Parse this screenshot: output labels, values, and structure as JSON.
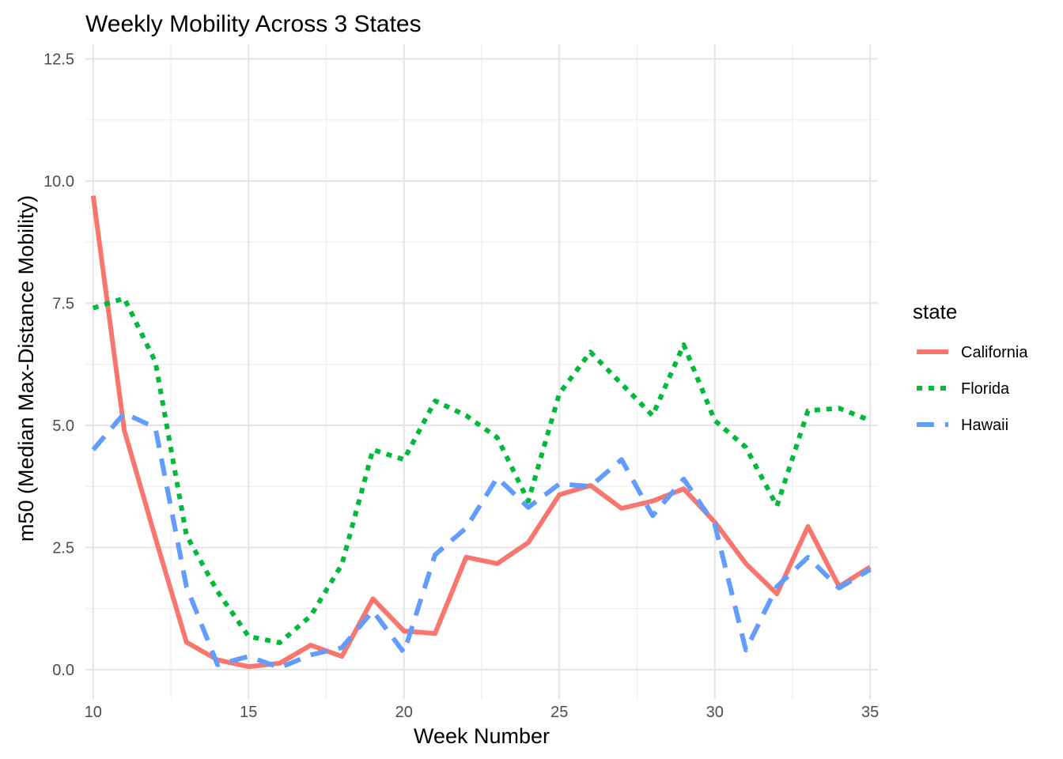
{
  "chart_data": {
    "type": "line",
    "title": "Weekly Mobility Across 3 States",
    "xlabel": "Week Number",
    "ylabel": "m50 (Median Max-Distance Mobility)",
    "xlim": [
      9.75,
      35.25
    ],
    "ylim": [
      -0.6,
      12.8
    ],
    "xticks": [
      10,
      15,
      20,
      25,
      30,
      35
    ],
    "yticks": [
      0.0,
      2.5,
      5.0,
      7.5,
      10.0,
      12.5
    ],
    "xtick_labels": [
      "10",
      "15",
      "20",
      "25",
      "30",
      "35"
    ],
    "ytick_labels": [
      "0.0",
      "2.5",
      "5.0",
      "7.5",
      "10.0",
      "12.5"
    ],
    "legend": {
      "title": "state",
      "position": "right"
    },
    "grid": true,
    "x": [
      10,
      11,
      12,
      13,
      14,
      15,
      16,
      17,
      18,
      19,
      20,
      21,
      22,
      23,
      24,
      25,
      26,
      27,
      28,
      29,
      30,
      31,
      32,
      33,
      34,
      35
    ],
    "series": [
      {
        "name": "California",
        "color": "#f8766d",
        "dash": "solid",
        "values": [
          9.7,
          4.9,
          2.7,
          0.56,
          0.2,
          0.06,
          0.13,
          0.5,
          0.27,
          1.45,
          0.79,
          0.74,
          2.3,
          2.17,
          2.6,
          3.58,
          3.77,
          3.3,
          3.45,
          3.7,
          3.02,
          2.17,
          1.55,
          2.93,
          1.7,
          2.1
        ]
      },
      {
        "name": "Florida",
        "color": "#00ba38",
        "dash": "dotted",
        "values": [
          7.4,
          7.6,
          6.3,
          2.75,
          1.6,
          0.68,
          0.55,
          1.1,
          2.15,
          4.5,
          4.3,
          5.5,
          5.2,
          4.75,
          3.45,
          5.65,
          6.5,
          5.85,
          5.2,
          6.65,
          5.1,
          4.55,
          3.35,
          5.3,
          5.35,
          5.1
        ]
      },
      {
        "name": "Hawaii",
        "color": "#619cff",
        "dash": "dashed",
        "values": [
          4.5,
          5.25,
          4.95,
          1.7,
          0.1,
          0.27,
          0.04,
          0.3,
          0.45,
          1.2,
          0.35,
          2.35,
          2.9,
          3.93,
          3.32,
          3.8,
          3.75,
          4.3,
          3.15,
          3.9,
          2.97,
          0.4,
          1.7,
          2.3,
          1.67,
          2.05
        ]
      }
    ]
  }
}
